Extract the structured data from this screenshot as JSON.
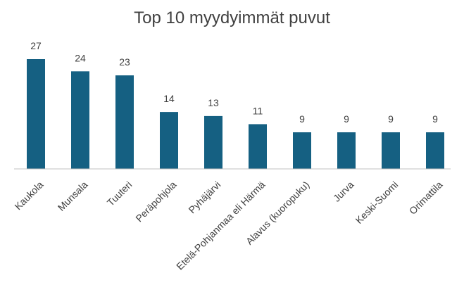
{
  "chart_data": {
    "type": "bar",
    "title": "Top 10 myydyimmät puvut",
    "categories": [
      "Kaukola",
      "Munsala",
      "Tuuteri",
      "Peräpohjola",
      "Pyhäjärvi",
      "Etelä-Pohjanmaa eli Härmä",
      "Alavus (kuoropuku)",
      "Jurva",
      "Keski-Suomi",
      "Orimattila"
    ],
    "values": [
      27,
      24,
      23,
      14,
      13,
      11,
      9,
      9,
      9,
      9
    ],
    "ylim": [
      0,
      27
    ],
    "grid": false,
    "legend": "none",
    "data_labels": true,
    "bar_color": "#156082",
    "axis_color": "#c0c0c0",
    "label_color": "#404040"
  }
}
